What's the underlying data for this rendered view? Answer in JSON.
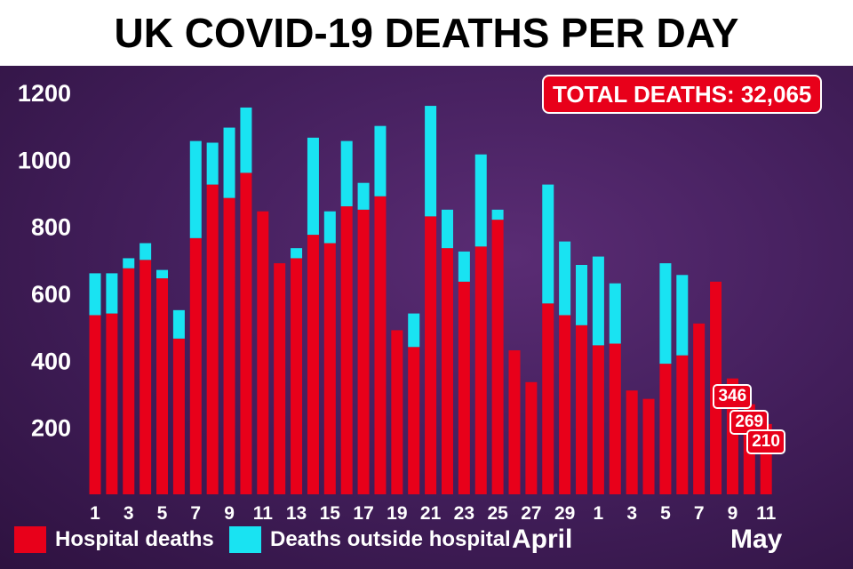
{
  "title": "UK COVID-19 DEATHS PER DAY",
  "total_label": "TOTAL DEATHS: 32,065",
  "legend": [
    {
      "label": "Hospital deaths",
      "color": "#e8001a"
    },
    {
      "label": "Deaths outside hospital",
      "color": "#19e3f2"
    }
  ],
  "months": [
    "April",
    "May"
  ],
  "colors": {
    "hospital": "#e8001a",
    "outside": "#19e3f2",
    "background": "#45205e"
  },
  "chart_data": {
    "type": "bar",
    "stacked": true,
    "title": "UK COVID-19 DEATHS PER DAY",
    "xlabel": "",
    "ylabel": "",
    "ylim": [
      0,
      1200
    ],
    "yticks": [
      200,
      400,
      600,
      800,
      1000,
      1200
    ],
    "grid": false,
    "legend_position": "bottom-left",
    "categories": [
      "1",
      "2",
      "3",
      "4",
      "5",
      "6",
      "7",
      "8",
      "9",
      "10",
      "11",
      "12",
      "13",
      "14",
      "15",
      "16",
      "17",
      "18",
      "19",
      "20",
      "21",
      "22",
      "23",
      "24",
      "25",
      "26",
      "27",
      "28",
      "29",
      "30",
      "1",
      "2",
      "3",
      "4",
      "5",
      "6",
      "7",
      "8",
      "9",
      "10",
      "11"
    ],
    "tick_labels": [
      "1",
      "",
      "3",
      "",
      "5",
      "",
      "7",
      "",
      "9",
      "",
      "11",
      "",
      "13",
      "",
      "15",
      "",
      "17",
      "",
      "19",
      "",
      "21",
      "",
      "23",
      "",
      "25",
      "",
      "27",
      "",
      "29",
      "",
      "1",
      "",
      "3",
      "",
      "5",
      "",
      "7",
      "",
      "9",
      "",
      "11"
    ],
    "series": [
      {
        "name": "Hospital deaths",
        "values": [
          535,
          540,
          675,
          700,
          645,
          465,
          765,
          925,
          885,
          960,
          845,
          690,
          705,
          775,
          750,
          860,
          850,
          890,
          490,
          440,
          830,
          735,
          635,
          740,
          820,
          430,
          335,
          570,
          535,
          505,
          445,
          450,
          310,
          285,
          390,
          415,
          510,
          635,
          346,
          269,
          210
        ]
      },
      {
        "name": "Deaths outside hospital",
        "values": [
          125,
          120,
          30,
          50,
          25,
          85,
          290,
          125,
          210,
          195,
          0,
          0,
          30,
          290,
          95,
          195,
          80,
          210,
          0,
          100,
          330,
          115,
          90,
          275,
          30,
          0,
          0,
          355,
          220,
          180,
          265,
          180,
          0,
          0,
          300,
          240,
          0,
          0,
          0,
          0,
          0
        ]
      }
    ],
    "annotations": [
      {
        "category_index": 38,
        "text": "346"
      },
      {
        "category_index": 39,
        "text": "269"
      },
      {
        "category_index": 40,
        "text": "210"
      }
    ]
  }
}
